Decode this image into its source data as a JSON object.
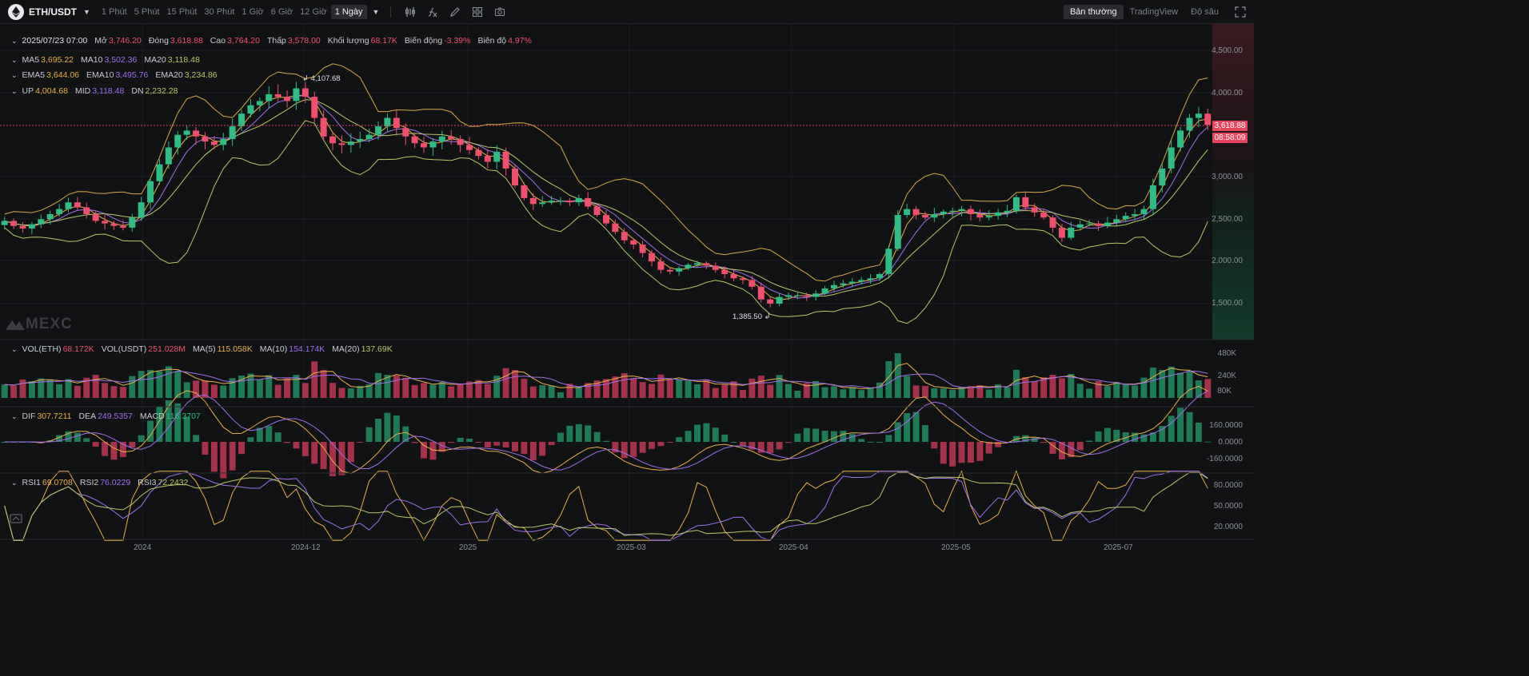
{
  "toolbar": {
    "pair": "ETH/USDT",
    "intervals": [
      "1 Phút",
      "5 Phút",
      "15 Phút",
      "30 Phút",
      "1 Giờ",
      "6 Giờ",
      "12 Giờ"
    ],
    "active_interval": "1 Ngày",
    "tool_icons": [
      "indicator-icon",
      "fx-icon",
      "draw-pencil-icon",
      "layout-grid-icon",
      "camera-icon"
    ],
    "views": [
      "Bản thường",
      "TradingView",
      "Độ sâu"
    ],
    "active_view": "Bản thường"
  },
  "ohlc": {
    "date": "2025/07/23 07:00",
    "open_label": "Mở",
    "open": "3,746.20",
    "close_label": "Đóng",
    "close": "3,618.88",
    "high_label": "Cao",
    "high": "3,764.20",
    "low_label": "Thấp",
    "low": "3,578.00",
    "volume_label": "Khối lượng",
    "volume": "68.17K",
    "change_label": "Biến động",
    "change": "-3.39%",
    "amplitude_label": "Biên độ",
    "amplitude": "4.97%"
  },
  "ma": {
    "ma5_label": "MA5",
    "ma5": "3,695.22",
    "ma10_label": "MA10",
    "ma10": "3,502.36",
    "ma20_label": "MA20",
    "ma20": "3,118.48"
  },
  "ema": {
    "ema5_label": "EMA5",
    "ema5": "3,644.06",
    "ema10_label": "EMA10",
    "ema10": "3,495.76",
    "ema20_label": "EMA20",
    "ema20": "3,234.86"
  },
  "boll": {
    "up_label": "UP",
    "up": "4,004.68",
    "mid_label": "MID",
    "mid": "3,118.48",
    "dn_label": "DN",
    "dn": "2,232.28"
  },
  "volume_legend": {
    "vol_eth_label": "VOL(ETH)",
    "vol_eth": "68.172K",
    "vol_usdt_label": "VOL(USDT)",
    "vol_usdt": "251.028M",
    "ma5_label": "MA(5)",
    "ma5": "115.058K",
    "ma10_label": "MA(10)",
    "ma10": "154.174K",
    "ma20_label": "MA(20)",
    "ma20": "137.69K"
  },
  "macd_legend": {
    "dif_label": "DIF",
    "dif": "307.7211",
    "dea_label": "DEA",
    "dea": "249.5357",
    "macd_label": "MACD",
    "macd": "116.3707"
  },
  "rsi_legend": {
    "rsi1_label": "RSI1",
    "rsi1": "69.0708",
    "rsi2_label": "RSI2",
    "rsi2": "76.0229",
    "rsi3_label": "RSI3",
    "rsi3": "72.2432"
  },
  "price_axis": [
    "4,500.00",
    "4,000.00",
    "3,000.00",
    "2,500.00",
    "2,000.00",
    "1,500.00"
  ],
  "volume_axis": [
    "480K",
    "240K",
    "80K"
  ],
  "macd_axis": [
    "160.0000",
    "0.0000",
    "-160.0000"
  ],
  "rsi_axis": [
    "80.0000",
    "50.0000",
    "20.0000"
  ],
  "time_axis": [
    "2024",
    "2024-12",
    "2025",
    "2025-03",
    "2025-04",
    "2025-05",
    "2025-07"
  ],
  "current_price": "3,618.88",
  "countdown": "08:58:09",
  "high_marker": "4,107.68",
  "low_marker": "1,385.50",
  "watermark": "MEXC",
  "colors": {
    "up": "#2fbd85",
    "down": "#f0506e",
    "ma5": "#e8b04b",
    "ma10": "#a070f0",
    "ma20": "#b8c86a",
    "boll": "#d6a94a"
  },
  "chart_data": {
    "type": "candlestick",
    "title": "ETH/USDT",
    "interval": "1 Ngày",
    "closes": [
      2480,
      2420,
      2390,
      2440,
      2500,
      2560,
      2620,
      2700,
      2640,
      2560,
      2480,
      2450,
      2420,
      2400,
      2520,
      2700,
      2950,
      3150,
      3350,
      3500,
      3550,
      3480,
      3420,
      3380,
      3450,
      3600,
      3750,
      3850,
      3900,
      3980,
      3950,
      3900,
      4050,
      3950,
      3700,
      3480,
      3400,
      3380,
      3420,
      3450,
      3500,
      3600,
      3700,
      3580,
      3480,
      3400,
      3350,
      3420,
      3480,
      3450,
      3380,
      3320,
      3250,
      3180,
      3300,
      3100,
      2900,
      2750,
      2680,
      2700,
      2720,
      2720,
      2700,
      2750,
      2650,
      2550,
      2450,
      2350,
      2250,
      2200,
      2100,
      2000,
      1900,
      1880,
      1920,
      1960,
      1980,
      1950,
      1900,
      1850,
      1800,
      1780,
      1700,
      1550,
      1500,
      1580,
      1600,
      1600,
      1580,
      1620,
      1680,
      1720,
      1740,
      1760,
      1780,
      1800,
      1850,
      2150,
      2550,
      2620,
      2550,
      2520,
      2560,
      2590,
      2600,
      2620,
      2560,
      2520,
      2540,
      2580,
      2600,
      2760,
      2640,
      2580,
      2520,
      2400,
      2280,
      2400,
      2440,
      2450,
      2420,
      2460,
      2500,
      2540,
      2560,
      2620,
      2900,
      3100,
      3350,
      3550,
      3700,
      3750,
      3618
    ],
    "y_range": [
      1385.5,
      4107.68
    ],
    "volume_scale": [
      "80K",
      "240K",
      "480K"
    ],
    "rsi_range": [
      20,
      80
    ]
  }
}
